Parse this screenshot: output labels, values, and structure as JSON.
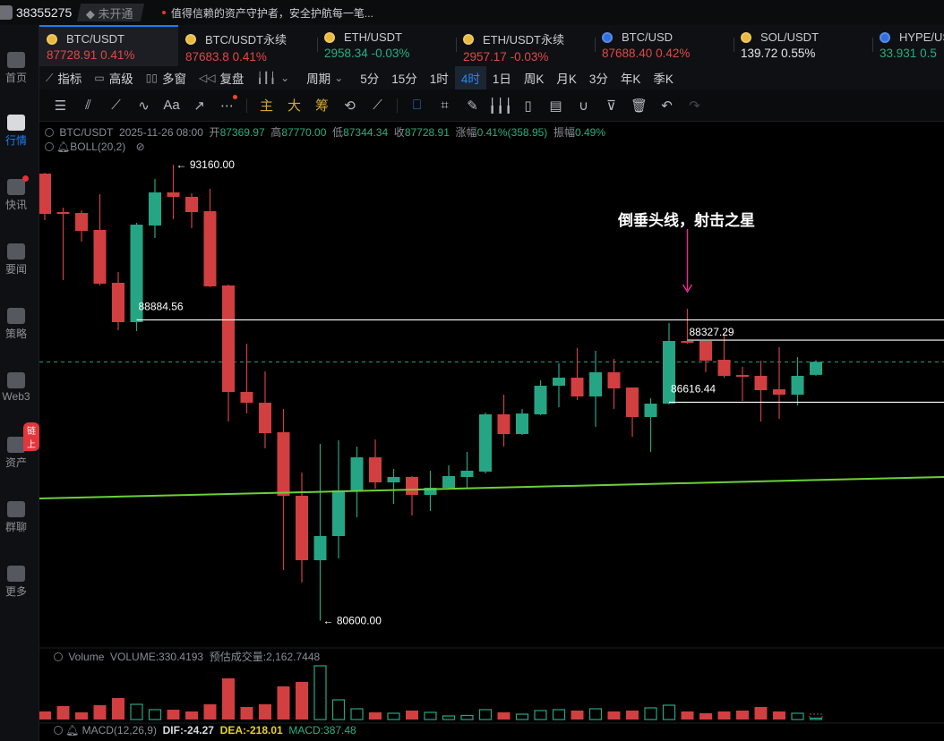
{
  "topbar": {
    "user_id": "38355275",
    "membership": "未开通",
    "notice": "值得信赖的资产守护者，安全护航每一笔..."
  },
  "sidebar": {
    "items": [
      {
        "label": "首页",
        "icon": "home-icon"
      },
      {
        "label": "行情",
        "icon": "market-icon",
        "active": true
      },
      {
        "label": "快讯",
        "icon": "flash-news-icon",
        "dot": true
      },
      {
        "label": "要闻",
        "icon": "news-icon"
      },
      {
        "label": "策略",
        "icon": "strategy-robot-icon"
      },
      {
        "label": "Web3",
        "icon": "web3-icon"
      },
      {
        "label": "资产",
        "icon": "wallet-icon",
        "badge": "链上"
      },
      {
        "label": "群聊",
        "icon": "chat-icon"
      },
      {
        "label": "更多",
        "icon": "more-grid-icon"
      }
    ]
  },
  "tickers": [
    {
      "symbol": "BTC/USDT",
      "price": "87728.91",
      "change": "0.41%",
      "tone": "red",
      "active": true
    },
    {
      "symbol": "BTC/USDT永续",
      "price": "87683.8",
      "change": "0.41%",
      "tone": "red"
    },
    {
      "symbol": "ETH/USDT",
      "price": "2958.34",
      "change": "-0.03%",
      "tone": "green"
    },
    {
      "symbol": "ETH/USDT永续",
      "price": "2957.17",
      "change": "-0.03%",
      "tone": "red"
    },
    {
      "symbol": "BTC/USD",
      "price": "87688.40",
      "change": "0.42%",
      "tone": "red"
    },
    {
      "symbol": "SOL/USDT",
      "price": "139.72",
      "change": "0.55%",
      "tone": "white"
    },
    {
      "symbol": "HYPE/USDT",
      "price": "33.931",
      "change": "0.5",
      "tone": "green"
    }
  ],
  "periods": {
    "tools": [
      {
        "label": "指标",
        "icon": "indicator-icon"
      },
      {
        "label": "高级",
        "icon": "advanced-icon"
      },
      {
        "label": "多窗",
        "icon": "multi-window-icon"
      },
      {
        "label": "复盘",
        "icon": "replay-icon"
      }
    ],
    "chart_type_icon": "candlestick-icon",
    "cycle_label": "周期",
    "items": [
      "5分",
      "15分",
      "1时",
      "4时",
      "1日",
      "周K",
      "月K",
      "3分",
      "年K",
      "季K"
    ],
    "active": "4时"
  },
  "drawing_tools": {
    "icons": [
      "menu-icon",
      "parallel-lines-icon",
      "line-segment-icon",
      "wave-icon",
      "text-icon",
      "ray-icon",
      "more-icon"
    ],
    "labels": [
      "主",
      "大",
      "筹"
    ],
    "right_icons": [
      "sync-icon",
      "magnet-line-icon",
      "bookmark-icon",
      "ruler-icon",
      "brush-icon",
      "candles-icon",
      "ohlc-icon",
      "note-icon",
      "magnet-icon",
      "filter-icon",
      "trash-icon",
      "undo-icon",
      "redo-icon"
    ]
  },
  "info": {
    "symbol": "BTC/USDT",
    "time": "2025-11-26 08:00",
    "open_label": "开",
    "open": "87369.97",
    "high_label": "高",
    "high": "87770.00",
    "low_label": "低",
    "low": "87344.34",
    "close_label": "收",
    "close": "87728.91",
    "change_label": "涨幅",
    "change": "0.41%(358.95)",
    "amp_label": "振幅",
    "amp": "0.49%"
  },
  "boll": {
    "label": "BOLL(20,2)"
  },
  "annotation": {
    "text": "倒垂头线，射击之星",
    "color": "#e0308a"
  },
  "volume": {
    "label": "Volume",
    "value": "VOLUME:330.4193",
    "estimate": "预估成交量:2,162.7448"
  },
  "macd": {
    "label": "MACD(12,26,9)",
    "dif": "DIF:-24.27",
    "dea": "DEA:-218.01",
    "macd": "MACD:387.48"
  },
  "colors": {
    "up": "#26a584",
    "down": "#d13f40",
    "trend": "#6ccf3a",
    "accent": "#1f7cf0"
  },
  "chart_data": {
    "type": "candlestick",
    "symbol": "BTC/USDT",
    "interval": "4时",
    "current_price": 87728.91,
    "max_label": "93160.00",
    "min_label": "80600.00",
    "candles": [
      [
        92914,
        92938,
        91632,
        91804
      ],
      [
        91854,
        91977,
        89980,
        91829
      ],
      [
        91829,
        91903,
        91040,
        91336
      ],
      [
        91361,
        92347,
        89832,
        89882
      ],
      [
        89906,
        90202,
        88600,
        88822
      ],
      [
        88822,
        91558,
        88575,
        91508
      ],
      [
        91484,
        92766,
        91139,
        92396
      ],
      [
        92396,
        93160,
        91656,
        92273
      ],
      [
        92273,
        92371,
        91410,
        91854
      ],
      [
        91878,
        92494,
        89783,
        89808
      ],
      [
        89832,
        89857,
        86086,
        86899
      ],
      [
        86899,
        88230,
        86307,
        86603
      ],
      [
        86603,
        87466,
        85346,
        85765
      ],
      [
        85790,
        86430,
        81994,
        84040
      ],
      [
        84040,
        84680,
        81649,
        82265
      ],
      [
        82265,
        85469,
        80600,
        82930
      ],
      [
        82930,
        85568,
        82314,
        84187
      ],
      [
        84187,
        85395,
        83448,
        85099
      ],
      [
        85099,
        85592,
        84236,
        84409
      ],
      [
        84409,
        84779,
        83818,
        84557
      ],
      [
        84557,
        84582,
        83497,
        84064
      ],
      [
        84064,
        84730,
        83620,
        84261
      ],
      [
        84261,
        84878,
        84212,
        84582
      ],
      [
        84557,
        85247,
        84236,
        84730
      ],
      [
        84705,
        86332,
        84656,
        86283
      ],
      [
        86283,
        86825,
        85395,
        85741
      ],
      [
        85741,
        86430,
        85716,
        86307
      ],
      [
        86283,
        87219,
        86258,
        87071
      ],
      [
        87071,
        87688,
        86480,
        87293
      ],
      [
        87293,
        88107,
        86677,
        86776
      ],
      [
        86776,
        88033,
        85938,
        87441
      ],
      [
        87441,
        87811,
        86430,
        86998
      ],
      [
        87022,
        87022,
        85666,
        86209
      ],
      [
        86209,
        86726,
        85247,
        86578
      ],
      [
        86578,
        88797,
        86554,
        88304
      ],
      [
        88304,
        89191,
        88230,
        88255
      ],
      [
        88304,
        88304,
        87441,
        87762
      ],
      [
        87786,
        88501,
        87293,
        87343
      ],
      [
        87367,
        87589,
        86652,
        87318
      ],
      [
        87343,
        87762,
        86086,
        86948
      ],
      [
        86973,
        88131,
        86159,
        86825
      ],
      [
        86825,
        87860,
        86529,
        87343
      ],
      [
        87369.97,
        87770,
        87344.34,
        87728.91
      ]
    ],
    "volumes": [
      3240,
      5400,
      2880,
      5760,
      8640,
      6120,
      3960,
      3960,
      3240,
      6120,
      16560,
      5040,
      6120,
      13320,
      15120,
      21600,
      7920,
      4320,
      2880,
      2520,
      3600,
      2880,
      1440,
      1620,
      3960,
      2880,
      2160,
      3600,
      3960,
      3600,
      4320,
      3240,
      3600,
      4680,
      5760,
      3240,
      2520,
      3240,
      3600,
      5040,
      3240,
      2520,
      330.4193
    ],
    "volume_estimate": 2162.7448,
    "levels": [
      {
        "price": 88884.56,
        "label": "88884.56",
        "from_candle": 5
      },
      {
        "price": 88327.29,
        "label": "88327.29",
        "from_candle": 35
      },
      {
        "price": 86616.44,
        "label": "86616.44",
        "from_candle": 34
      }
    ],
    "trendline": {
      "from": [
        -0.3,
        83966
      ],
      "to": [
        49,
        84557
      ]
    },
    "annotated_candle": 35
  }
}
